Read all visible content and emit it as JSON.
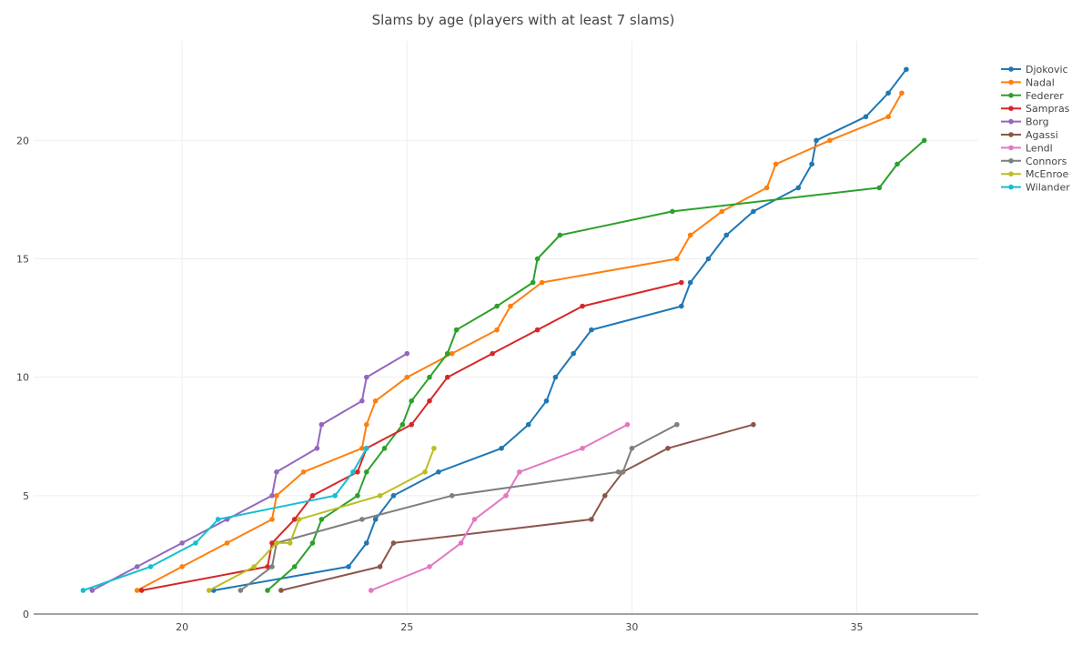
{
  "chart_data": {
    "type": "line",
    "title": "Slams by age (players with at least 7 slams)",
    "xlabel": "",
    "ylabel": "",
    "xlim": [
      16.7,
      37.7
    ],
    "ylim": [
      0,
      24.2
    ],
    "x_ticks": [
      20,
      25,
      30,
      35
    ],
    "y_ticks": [
      0,
      5,
      10,
      15,
      20
    ],
    "grid": true,
    "legend": "top-right",
    "series": [
      {
        "name": "Djokovic",
        "color": "#1f77b4",
        "points": [
          [
            20.7,
            1
          ],
          [
            23.7,
            2
          ],
          [
            24.1,
            3
          ],
          [
            24.3,
            4
          ],
          [
            24.7,
            5
          ],
          [
            25.7,
            6
          ],
          [
            27.1,
            7
          ],
          [
            27.7,
            8
          ],
          [
            28.1,
            9
          ],
          [
            28.3,
            10
          ],
          [
            28.7,
            11
          ],
          [
            29.1,
            12
          ],
          [
            31.1,
            13
          ],
          [
            31.3,
            14
          ],
          [
            31.7,
            15
          ],
          [
            32.1,
            16
          ],
          [
            32.7,
            17
          ],
          [
            33.7,
            18
          ],
          [
            34.0,
            19
          ],
          [
            34.1,
            20
          ],
          [
            35.2,
            21
          ],
          [
            35.7,
            22
          ],
          [
            36.1,
            23
          ]
        ]
      },
      {
        "name": "Nadal",
        "color": "#ff7f0e",
        "points": [
          [
            19.0,
            1
          ],
          [
            20.0,
            2
          ],
          [
            21.0,
            3
          ],
          [
            22.0,
            4
          ],
          [
            22.1,
            5
          ],
          [
            22.7,
            6
          ],
          [
            24.0,
            7
          ],
          [
            24.1,
            8
          ],
          [
            24.3,
            9
          ],
          [
            25.0,
            10
          ],
          [
            26.0,
            11
          ],
          [
            27.0,
            12
          ],
          [
            27.3,
            13
          ],
          [
            28.0,
            14
          ],
          [
            31.0,
            15
          ],
          [
            31.3,
            16
          ],
          [
            32.0,
            17
          ],
          [
            33.0,
            18
          ],
          [
            33.2,
            19
          ],
          [
            34.4,
            20
          ],
          [
            35.7,
            21
          ],
          [
            36.0,
            22
          ]
        ]
      },
      {
        "name": "Federer",
        "color": "#2ca02c",
        "points": [
          [
            21.9,
            1
          ],
          [
            22.5,
            2
          ],
          [
            22.9,
            3
          ],
          [
            23.1,
            4
          ],
          [
            23.9,
            5
          ],
          [
            24.1,
            6
          ],
          [
            24.5,
            7
          ],
          [
            24.9,
            8
          ],
          [
            25.1,
            9
          ],
          [
            25.5,
            10
          ],
          [
            25.9,
            11
          ],
          [
            26.1,
            12
          ],
          [
            27.0,
            13
          ],
          [
            27.8,
            14
          ],
          [
            27.9,
            15
          ],
          [
            28.4,
            16
          ],
          [
            30.9,
            17
          ],
          [
            35.5,
            18
          ],
          [
            35.9,
            19
          ],
          [
            36.5,
            20
          ]
        ]
      },
      {
        "name": "Sampras",
        "color": "#d62728",
        "points": [
          [
            19.1,
            1
          ],
          [
            21.9,
            2
          ],
          [
            22.0,
            3
          ],
          [
            22.5,
            4
          ],
          [
            22.9,
            5
          ],
          [
            23.9,
            6
          ],
          [
            24.1,
            7
          ],
          [
            25.1,
            8
          ],
          [
            25.5,
            9
          ],
          [
            25.9,
            10
          ],
          [
            26.9,
            11
          ],
          [
            27.9,
            12
          ],
          [
            28.9,
            13
          ],
          [
            31.1,
            14
          ]
        ]
      },
      {
        "name": "Borg",
        "color": "#9467bd",
        "points": [
          [
            18.0,
            1
          ],
          [
            19.0,
            2
          ],
          [
            20.0,
            3
          ],
          [
            21.0,
            4
          ],
          [
            22.0,
            5
          ],
          [
            22.1,
            6
          ],
          [
            23.0,
            7
          ],
          [
            23.1,
            8
          ],
          [
            24.0,
            9
          ],
          [
            24.1,
            10
          ],
          [
            25.0,
            11
          ]
        ]
      },
      {
        "name": "Agassi",
        "color": "#8c564b",
        "points": [
          [
            22.2,
            1
          ],
          [
            24.4,
            2
          ],
          [
            24.7,
            3
          ],
          [
            29.1,
            4
          ],
          [
            29.4,
            5
          ],
          [
            29.8,
            6
          ],
          [
            30.8,
            7
          ],
          [
            32.7,
            8
          ]
        ]
      },
      {
        "name": "Lendl",
        "color": "#e377c2",
        "points": [
          [
            24.2,
            1
          ],
          [
            25.5,
            2
          ],
          [
            26.2,
            3
          ],
          [
            26.5,
            4
          ],
          [
            27.2,
            5
          ],
          [
            27.5,
            6
          ],
          [
            28.9,
            7
          ],
          [
            29.9,
            8
          ]
        ]
      },
      {
        "name": "Connors",
        "color": "#7f7f7f",
        "points": [
          [
            21.3,
            1
          ],
          [
            22.0,
            2
          ],
          [
            22.1,
            3
          ],
          [
            24.0,
            4
          ],
          [
            26.0,
            5
          ],
          [
            29.7,
            6
          ],
          [
            29.8,
            6
          ],
          [
            30.0,
            7
          ],
          [
            31.0,
            8
          ]
        ]
      },
      {
        "name": "McEnroe",
        "color": "#bcbd22",
        "points": [
          [
            20.6,
            1
          ],
          [
            21.6,
            2
          ],
          [
            22.1,
            3
          ],
          [
            22.4,
            3
          ],
          [
            22.6,
            4
          ],
          [
            24.4,
            5
          ],
          [
            25.4,
            6
          ],
          [
            25.6,
            7
          ]
        ]
      },
      {
        "name": "Wilander",
        "color": "#17becf",
        "points": [
          [
            17.8,
            1
          ],
          [
            19.3,
            2
          ],
          [
            20.3,
            3
          ],
          [
            20.8,
            4
          ],
          [
            23.4,
            5
          ],
          [
            23.8,
            6
          ],
          [
            24.1,
            7
          ]
        ]
      }
    ]
  }
}
